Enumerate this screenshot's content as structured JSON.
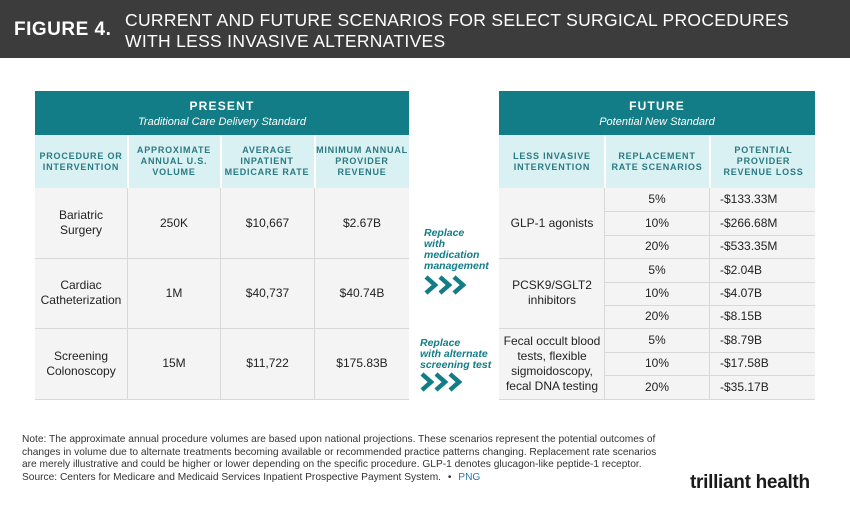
{
  "header": {
    "figure_label": "FIGURE 4.",
    "title": "CURRENT AND FUTURE SCENARIOS FOR SELECT SURGICAL PROCEDURES WITH LESS INVASIVE ALTERNATIVES"
  },
  "present": {
    "title": "PRESENT",
    "subtitle": "Traditional Care Delivery Standard",
    "columns": [
      "PROCEDURE OR INTERVENTION",
      "APPROXIMATE ANNUAL U.S. VOLUME",
      "AVERAGE INPATIENT MEDICARE RATE",
      "MINIMUM ANNUAL PROVIDER REVENUE"
    ],
    "rows": [
      {
        "procedure": "Bariatric Surgery",
        "volume": "250K",
        "rate": "$10,667",
        "revenue": "$2.67B"
      },
      {
        "procedure": "Cardiac Catheterization",
        "volume": "1M",
        "rate": "$40,737",
        "revenue": "$40.74B"
      },
      {
        "procedure": "Screening Colonoscopy",
        "volume": "15M",
        "rate": "$11,722",
        "revenue": "$175.83B"
      }
    ]
  },
  "middle": {
    "replace_med": "Replace with medication management",
    "replace_med_lines": [
      "Replace",
      "with",
      "medication",
      "management"
    ],
    "replace_screen_lines": [
      "Replace",
      "with alternate",
      "screening test"
    ],
    "chevron": "»»»"
  },
  "future": {
    "title": "FUTURE",
    "subtitle": "Potential New Standard",
    "columns": [
      "LESS INVASIVE INTERVENTION",
      "REPLACEMENT RATE SCENARIOS",
      "POTENTIAL PROVIDER REVENUE LOSS"
    ],
    "groups": [
      {
        "intervention": "GLP-1 agonists",
        "scenarios": [
          {
            "rate": "5%",
            "loss": "-$133.33M"
          },
          {
            "rate": "10%",
            "loss": "-$266.68M"
          },
          {
            "rate": "20%",
            "loss": "-$533.35M"
          }
        ]
      },
      {
        "intervention": "PCSK9/SGLT2 inhibitors",
        "scenarios": [
          {
            "rate": "5%",
            "loss": "-$2.04B"
          },
          {
            "rate": "10%",
            "loss": "-$4.07B"
          },
          {
            "rate": "20%",
            "loss": "-$8.15B"
          }
        ]
      },
      {
        "intervention": "Fecal occult blood tests, flexible sigmoidoscopy, fecal DNA testing",
        "scenarios": [
          {
            "rate": "5%",
            "loss": "-$8.79B"
          },
          {
            "rate": "10%",
            "loss": "-$17.58B"
          },
          {
            "rate": "20%",
            "loss": "-$35.17B"
          }
        ]
      }
    ]
  },
  "footer": {
    "note": "Note: The approximate annual procedure volumes are based upon national projections. These scenarios represent the potential outcomes of changes in volume due to alternate treatments becoming available or recommended practice patterns changing. Replacement rate scenarios are merely illustrative and could be higher or lower depending on the specific procedure. GLP-1 denotes glucagon-like peptide-1 receptor.",
    "source": "Source: Centers for Medicare and Medicaid Services Inpatient Prospective Payment System.",
    "separator": "•",
    "png_link": "PNG",
    "logo": "trilliant health"
  },
  "chart_data": {
    "type": "table",
    "title": "CURRENT AND FUTURE SCENARIOS FOR SELECT SURGICAL PROCEDURES WITH LESS INVASIVE ALTERNATIVES",
    "tables": [
      {
        "name": "PRESENT",
        "columns": [
          "PROCEDURE OR INTERVENTION",
          "APPROXIMATE ANNUAL U.S. VOLUME",
          "AVERAGE INPATIENT MEDICARE RATE",
          "MINIMUM ANNUAL PROVIDER REVENUE"
        ],
        "rows": [
          [
            "Bariatric Surgery",
            "250K",
            "$10,667",
            "$2.67B"
          ],
          [
            "Cardiac Catheterization",
            "1M",
            "$40,737",
            "$40.74B"
          ],
          [
            "Screening Colonoscopy",
            "15M",
            "$11,722",
            "$175.83B"
          ]
        ]
      },
      {
        "name": "FUTURE",
        "columns": [
          "LESS INVASIVE INTERVENTION",
          "REPLACEMENT RATE SCENARIOS",
          "POTENTIAL PROVIDER REVENUE LOSS"
        ],
        "rows": [
          [
            "GLP-1 agonists",
            "5%",
            "-$133.33M"
          ],
          [
            "GLP-1 agonists",
            "10%",
            "-$266.68M"
          ],
          [
            "GLP-1 agonists",
            "20%",
            "-$533.35M"
          ],
          [
            "PCSK9/SGLT2 inhibitors",
            "5%",
            "-$2.04B"
          ],
          [
            "PCSK9/SGLT2 inhibitors",
            "10%",
            "-$4.07B"
          ],
          [
            "PCSK9/SGLT2 inhibitors",
            "20%",
            "-$8.15B"
          ],
          [
            "Fecal occult blood tests, flexible sigmoidoscopy, fecal DNA testing",
            "5%",
            "-$8.79B"
          ],
          [
            "Fecal occult blood tests, flexible sigmoidoscopy, fecal DNA testing",
            "10%",
            "-$17.58B"
          ],
          [
            "Fecal occult blood tests, flexible sigmoidoscopy, fecal DNA testing",
            "20%",
            "-$35.17B"
          ]
        ]
      }
    ]
  }
}
